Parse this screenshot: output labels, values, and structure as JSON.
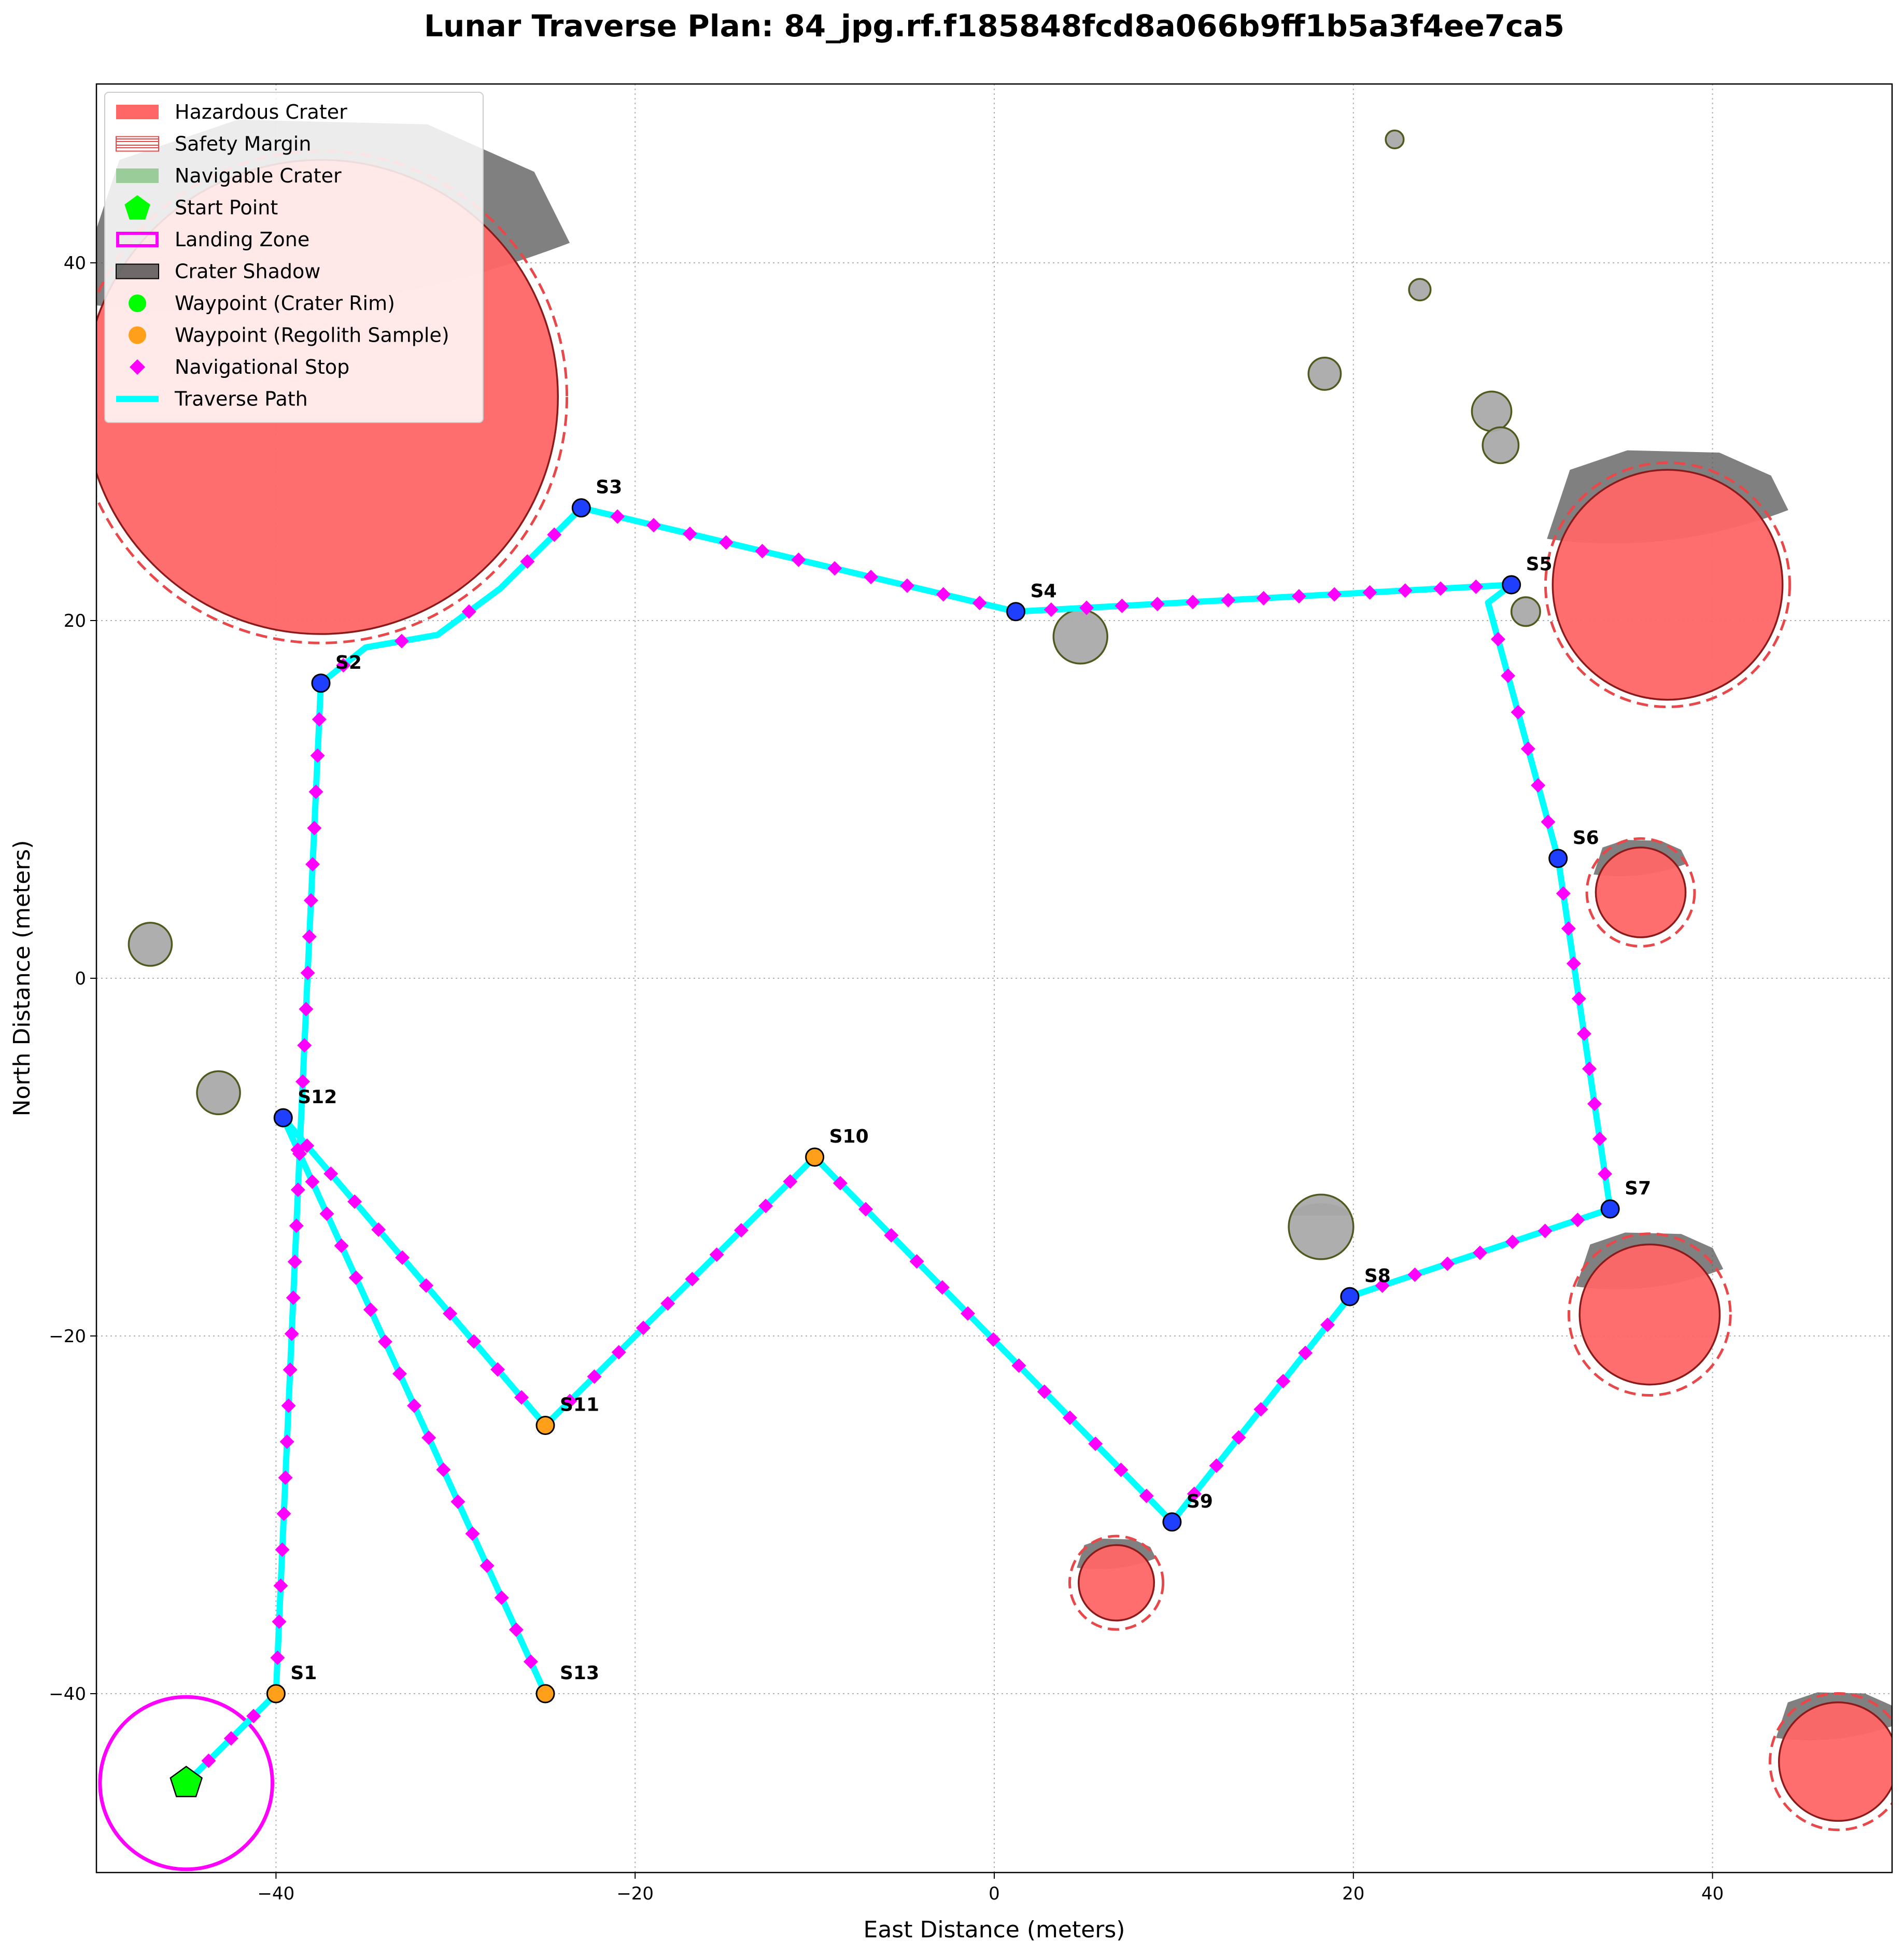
{
  "chart_data": {
    "type": "scatter",
    "title": "Lunar Traverse Plan: 84_jpg.rf.f185848fcd8a066b9ff1b5a3f4ee7ca5",
    "xlabel": "East Distance (meters)",
    "ylabel": "North Distance (meters)",
    "xlim": [
      -50,
      50
    ],
    "ylim": [
      -50,
      50
    ],
    "xticks": [
      -40,
      -20,
      0,
      20,
      40
    ],
    "yticks": [
      -40,
      -20,
      0,
      20,
      40
    ],
    "xtick_labels": [
      "−40",
      "−20",
      "0",
      "20",
      "40"
    ],
    "ytick_labels": [
      "−40",
      "−20",
      "0",
      "20",
      "40"
    ],
    "grid": true,
    "legend_position": "top-left",
    "legend": [
      {
        "key": "hazard",
        "label": "Hazardous Crater"
      },
      {
        "key": "margin",
        "label": "Safety Margin"
      },
      {
        "key": "navigable",
        "label": "Navigable Crater"
      },
      {
        "key": "start",
        "label": "Start Point"
      },
      {
        "key": "landing",
        "label": "Landing Zone"
      },
      {
        "key": "shadow",
        "label": "Crater Shadow"
      },
      {
        "key": "wp_rim",
        "label": "Waypoint (Crater Rim)"
      },
      {
        "key": "wp_sample",
        "label": "Waypoint (Regolith Sample)"
      },
      {
        "key": "nav_stop",
        "label": "Navigational Stop"
      },
      {
        "key": "path",
        "label": "Traverse Path"
      }
    ],
    "colors": {
      "hazard": "#ff6666",
      "hazard_edge": "#8b1a1a",
      "margin": "#e8484a",
      "navigable": "#aaaaaa",
      "navigable_edge": "#4f5a1f",
      "legend_navigable": "#99cc99",
      "shadow": "#555555",
      "path": "#00ffff",
      "nav_stop": "#ff00ff",
      "landing": "#ff00ff",
      "start": "#00ff00",
      "wp_rim_legend": "#00ff00",
      "wp_rim": "#1f3fff",
      "wp_sample": "#ff9f1a"
    },
    "start_point": {
      "x": -45,
      "y": -45
    },
    "landing_zone": {
      "x": -45,
      "y": -45,
      "r": 4.8
    },
    "hazardous_craters": [
      {
        "x": -37.5,
        "y": 32.5,
        "r": 13.2,
        "margin_r": 13.7,
        "shadow": true
      },
      {
        "x": 37.5,
        "y": 22.0,
        "r": 6.4,
        "margin_r": 6.8,
        "shadow": true
      },
      {
        "x": 36.0,
        "y": 4.8,
        "r": 2.5,
        "margin_r": 3.0,
        "shadow": true
      },
      {
        "x": 36.5,
        "y": -18.8,
        "r": 3.9,
        "margin_r": 4.5,
        "shadow": true
      },
      {
        "x": 6.8,
        "y": -33.8,
        "r": 2.1,
        "margin_r": 2.6,
        "shadow": true
      },
      {
        "x": 47.0,
        "y": -43.8,
        "r": 3.3,
        "margin_r": 3.8,
        "shadow": true
      }
    ],
    "navigable_craters": [
      {
        "x": -47.0,
        "y": 1.9,
        "r": 1.2
      },
      {
        "x": -43.2,
        "y": -6.4,
        "r": 1.2
      },
      {
        "x": 4.8,
        "y": 19.1,
        "r": 1.5
      },
      {
        "x": 18.2,
        "y": -13.9,
        "r": 1.8,
        "shadow": true
      },
      {
        "x": 18.4,
        "y": 33.8,
        "r": 0.9
      },
      {
        "x": 22.3,
        "y": 46.9,
        "r": 0.5
      },
      {
        "x": 23.7,
        "y": 38.5,
        "r": 0.6
      },
      {
        "x": 27.7,
        "y": 31.7,
        "r": 1.1
      },
      {
        "x": 28.2,
        "y": 29.8,
        "r": 1.0
      },
      {
        "x": 29.6,
        "y": 20.5,
        "r": 0.8
      }
    ],
    "waypoints": [
      {
        "label": "S1",
        "x": -40.0,
        "y": -40.0,
        "type": "sample"
      },
      {
        "label": "S2",
        "x": -37.5,
        "y": 16.5,
        "type": "rim"
      },
      {
        "label": "S3",
        "x": -23.0,
        "y": 26.3,
        "type": "rim"
      },
      {
        "label": "S4",
        "x": 1.2,
        "y": 20.5,
        "type": "rim"
      },
      {
        "label": "S5",
        "x": 28.8,
        "y": 22.0,
        "type": "rim"
      },
      {
        "label": "S6",
        "x": 31.4,
        "y": 6.7,
        "type": "rim"
      },
      {
        "label": "S7",
        "x": 34.3,
        "y": -12.9,
        "type": "rim"
      },
      {
        "label": "S8",
        "x": 19.8,
        "y": -17.8,
        "type": "rim"
      },
      {
        "label": "S9",
        "x": 9.9,
        "y": -30.4,
        "type": "rim"
      },
      {
        "label": "S10",
        "x": -10.0,
        "y": -10.0,
        "type": "sample"
      },
      {
        "label": "S11",
        "x": -25.0,
        "y": -25.0,
        "type": "sample"
      },
      {
        "label": "S12",
        "x": -39.6,
        "y": -7.8,
        "type": "rim"
      },
      {
        "label": "S13",
        "x": -25.0,
        "y": -40.0,
        "type": "sample"
      }
    ],
    "traverse_path": [
      {
        "x": -45.0,
        "y": -45.0
      },
      {
        "x": -40.0,
        "y": -40.0
      },
      {
        "x": -38.6,
        "y": -7.8
      },
      {
        "x": -37.5,
        "y": 16.5
      },
      {
        "x": -35.0,
        "y": 18.5
      },
      {
        "x": -31.0,
        "y": 19.2
      },
      {
        "x": -27.5,
        "y": 21.8
      },
      {
        "x": -23.0,
        "y": 26.3
      },
      {
        "x": 1.2,
        "y": 20.5
      },
      {
        "x": 28.8,
        "y": 22.0
      },
      {
        "x": 27.5,
        "y": 21.0
      },
      {
        "x": 31.4,
        "y": 6.7
      },
      {
        "x": 34.3,
        "y": -12.9
      },
      {
        "x": 19.8,
        "y": -17.8
      },
      {
        "x": 9.9,
        "y": -30.4
      },
      {
        "x": -10.0,
        "y": -10.0
      },
      {
        "x": -25.0,
        "y": -25.0
      },
      {
        "x": -39.6,
        "y": -7.8
      },
      {
        "x": -25.0,
        "y": -40.0
      }
    ],
    "nav_stop_spacing_m": 2.0
  }
}
